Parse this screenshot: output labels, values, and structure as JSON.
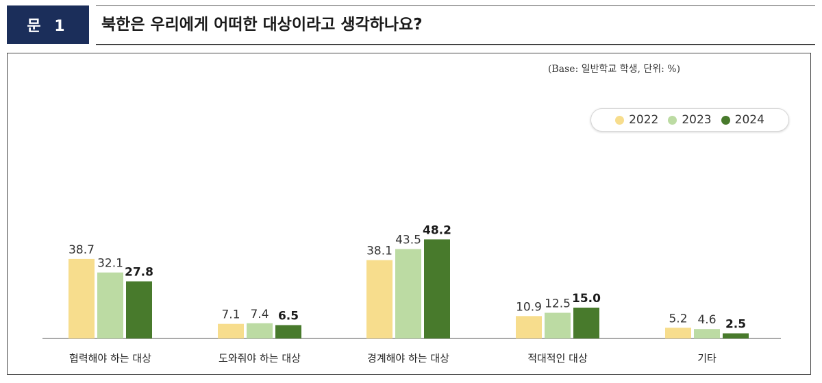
{
  "header": {
    "badge": "문 1",
    "question": "북한은 우리에게 어떠한 대상이라고 생각하나요?"
  },
  "note": "(Base: 일반학교 학생, 단위: %)",
  "chart_data": {
    "type": "bar",
    "title": "",
    "xlabel": "",
    "ylabel": "",
    "categories": [
      "협력해야 하는 대상",
      "도와줘야 하는 대상",
      "경계해야 하는 대상",
      "적대적인 대상",
      "기타"
    ],
    "series": [
      {
        "name": "2022",
        "color": "#f7dd8d",
        "values": [
          38.7,
          7.1,
          38.1,
          10.9,
          5.2
        ],
        "labels": [
          "38.7",
          "7.1",
          "38.1",
          "10.9",
          "5.2"
        ]
      },
      {
        "name": "2023",
        "color": "#bcdba3",
        "values": [
          32.1,
          7.4,
          43.5,
          12.5,
          4.6
        ],
        "labels": [
          "32.1",
          "7.4",
          "43.5",
          "12.5",
          "4.6"
        ]
      },
      {
        "name": "2024",
        "color": "#487a2c",
        "values": [
          27.8,
          6.5,
          48.2,
          15.0,
          2.5
        ],
        "labels": [
          "27.8",
          "6.5",
          "48.2",
          "15.0",
          "2.5"
        ]
      }
    ],
    "ylim": [
      0,
      60
    ],
    "grid": false,
    "legend": "top-right"
  }
}
